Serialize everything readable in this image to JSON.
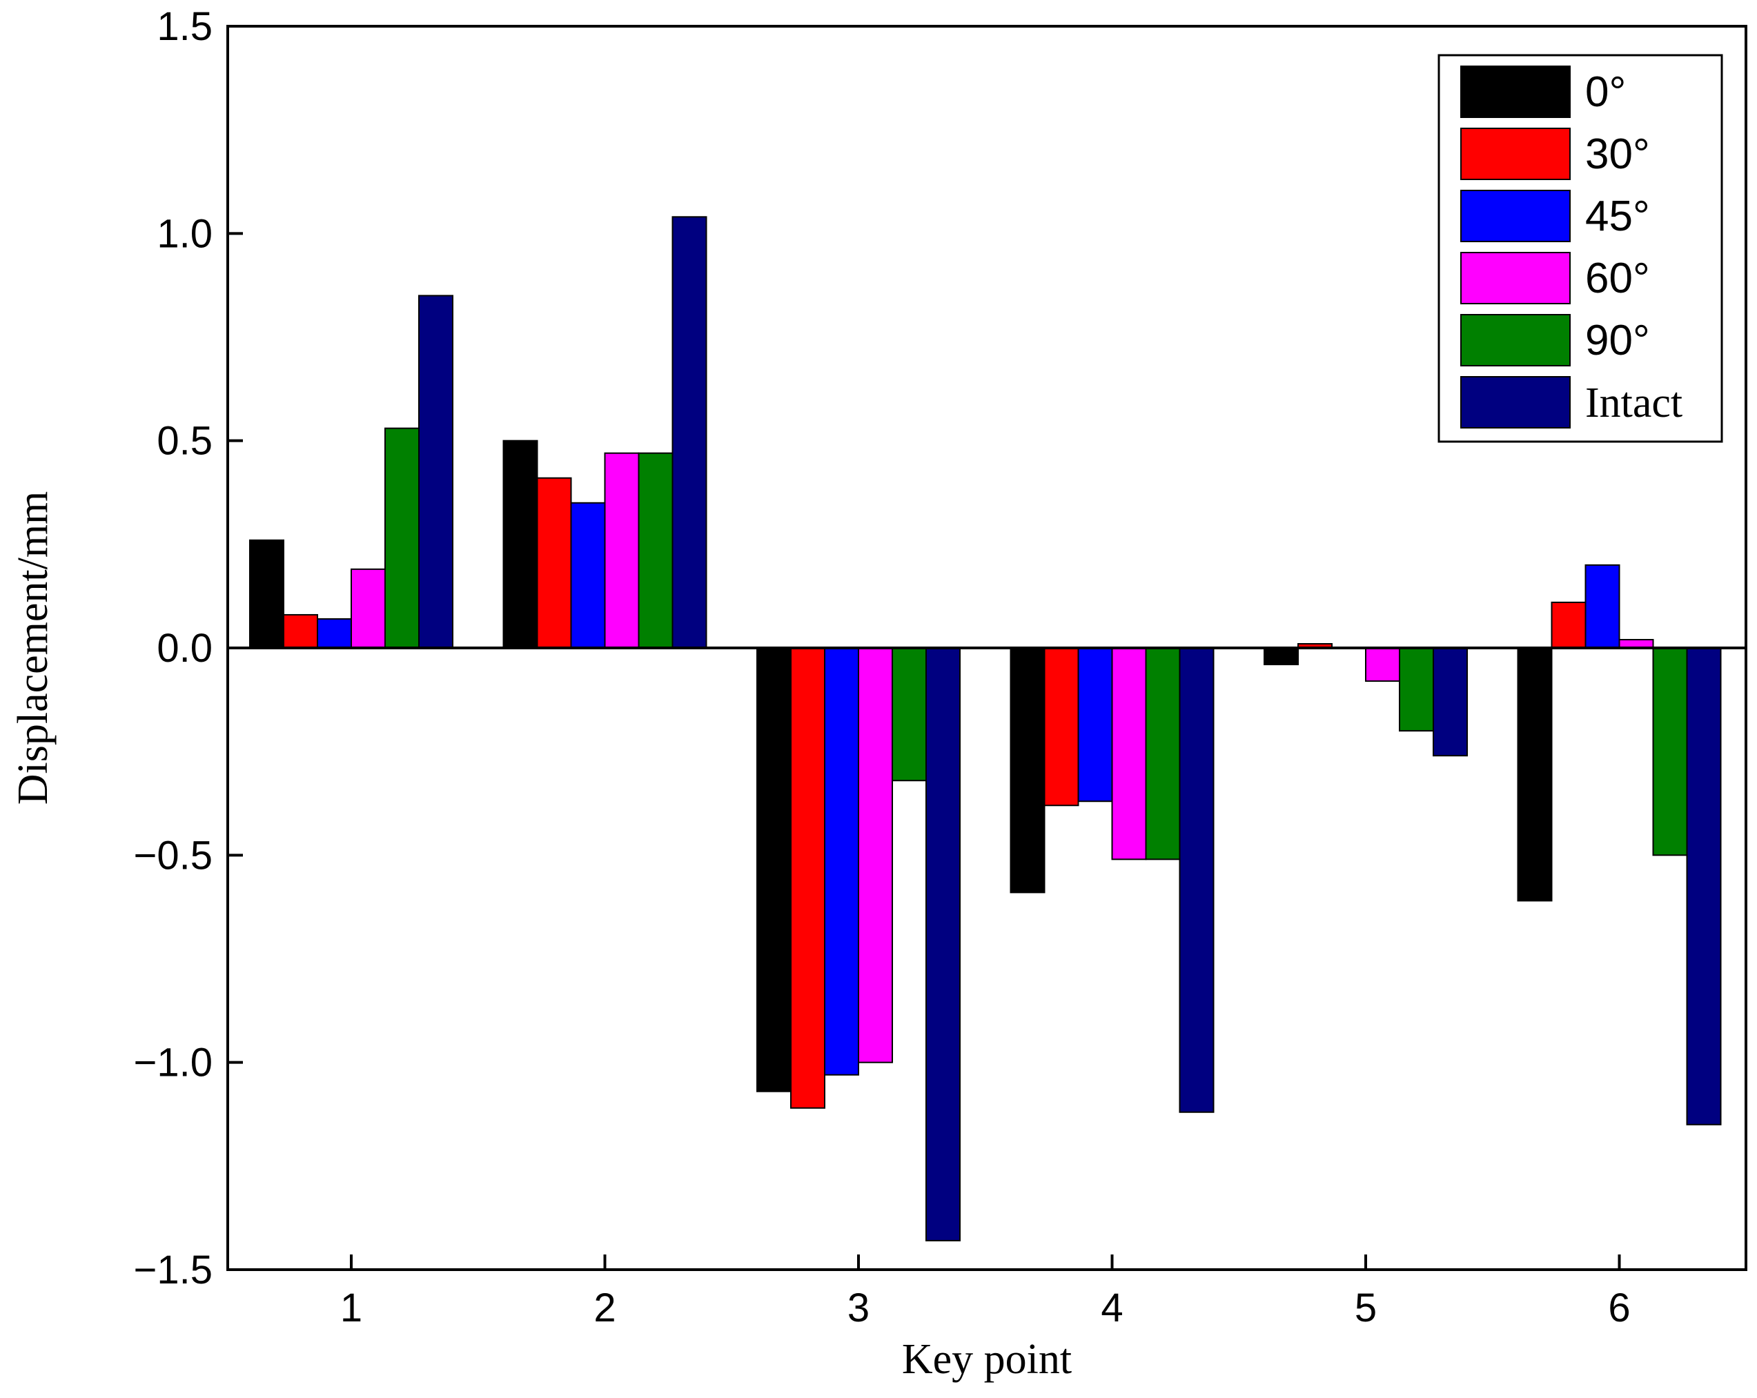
{
  "chart_data": {
    "type": "bar",
    "xlabel": "Key point",
    "ylabel": "Displacement/mm",
    "ylim": [
      -1.5,
      1.5
    ],
    "yticks": [
      "1.5",
      "1.0",
      "0.5",
      "0.0",
      "−0.5",
      "−1.0",
      "−1.5"
    ],
    "ytick_values": [
      1.5,
      1.0,
      0.5,
      0.0,
      -0.5,
      -1.0,
      -1.5
    ],
    "categories": [
      "1",
      "2",
      "3",
      "4",
      "5",
      "6"
    ],
    "legend_position": "top-right",
    "grid": false,
    "series": [
      {
        "name": "0°",
        "color": "#000000",
        "values": [
          0.26,
          0.5,
          -1.07,
          -0.59,
          -0.04,
          -0.61
        ]
      },
      {
        "name": "30°",
        "color": "#ff0000",
        "values": [
          0.08,
          0.41,
          -1.11,
          -0.38,
          0.01,
          0.11
        ]
      },
      {
        "name": "45°",
        "color": "#0000ff",
        "values": [
          0.07,
          0.35,
          -1.03,
          -0.37,
          0.0,
          0.2
        ]
      },
      {
        "name": "60°",
        "color": "#ff00ff",
        "values": [
          0.19,
          0.47,
          -1.0,
          -0.51,
          -0.08,
          0.02
        ]
      },
      {
        "name": "90°",
        "color": "#008000",
        "values": [
          0.53,
          0.47,
          -0.32,
          -0.51,
          -0.2,
          -0.5
        ]
      },
      {
        "name": "Intact",
        "color": "#000080",
        "values": [
          0.85,
          1.04,
          -1.43,
          -1.12,
          -0.26,
          -1.15
        ]
      }
    ]
  }
}
